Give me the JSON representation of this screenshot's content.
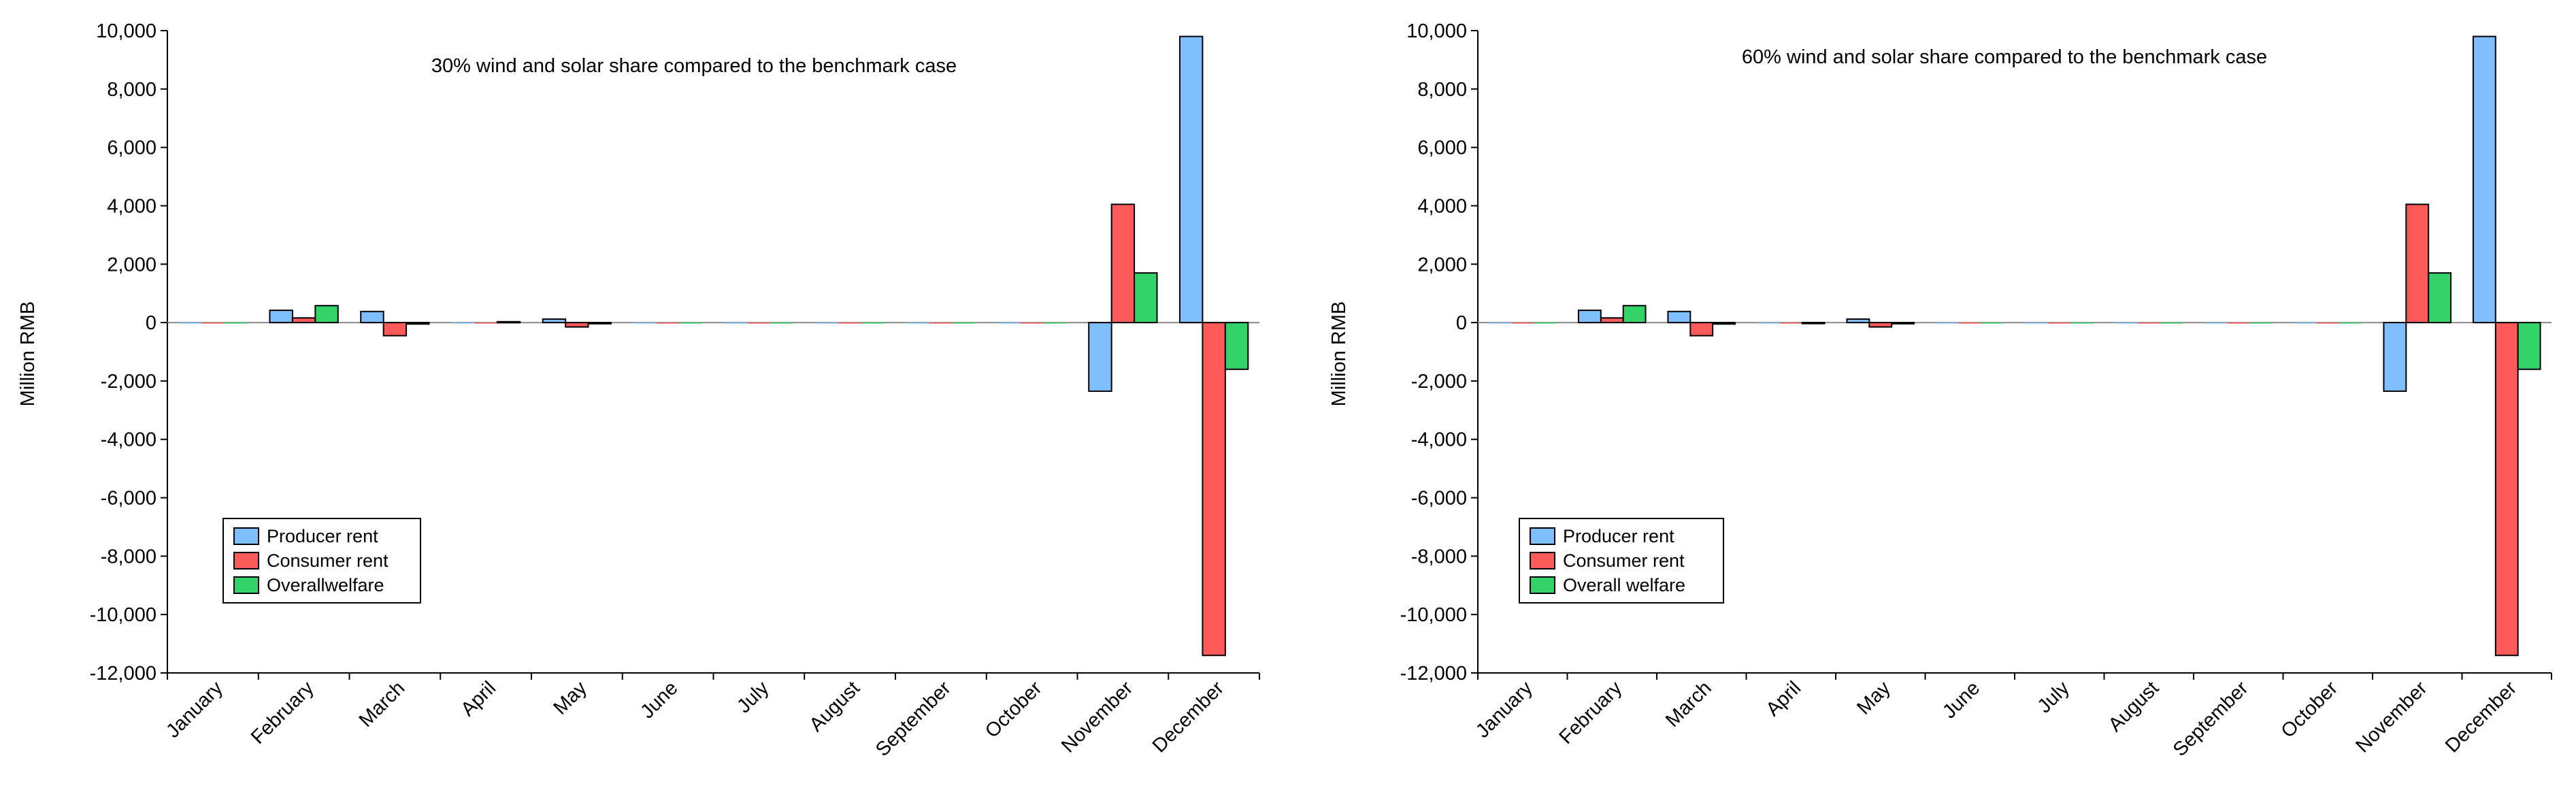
{
  "colors": {
    "producer": "#7fbfff",
    "consumer": "#ff5a5a",
    "welfare": "#33d36a",
    "axis": "#000000",
    "zero_line": "#8c8c8c"
  },
  "chart_data": [
    {
      "type": "bar",
      "title": "30% wind and solar share compared to the benchmark case",
      "ylabel": "Million RMB",
      "xlabel": "",
      "ylim": [
        -12000,
        10000
      ],
      "y_ticks": [
        "10,000",
        "8,000",
        "6,000",
        "4,000",
        "2,000",
        "0",
        "-2,000",
        "-4,000",
        "-6,000",
        "-8,000",
        "-10,000",
        "-12,000"
      ],
      "categories": [
        "January",
        "February",
        "March",
        "April",
        "May",
        "June",
        "July",
        "August",
        "September",
        "October",
        "November",
        "December"
      ],
      "legend_position": "lower-left",
      "series": [
        {
          "name": "Producer rent",
          "values": [
            0,
            420,
            380,
            0,
            120,
            0,
            0,
            0,
            0,
            0,
            -2350,
            9800
          ]
        },
        {
          "name": "Consumer rent",
          "values": [
            0,
            160,
            -450,
            0,
            -150,
            0,
            0,
            0,
            0,
            0,
            4050,
            -11400
          ]
        },
        {
          "name": "Overallwelfare",
          "values": [
            0,
            580,
            -50,
            30,
            -40,
            0,
            0,
            0,
            0,
            0,
            1700,
            -1600
          ]
        }
      ]
    },
    {
      "type": "bar",
      "title": "60% wind and solar share compared to the benchmark case",
      "ylabel": "Million RMB",
      "xlabel": "",
      "ylim": [
        -12000,
        10000
      ],
      "y_ticks": [
        "10,000",
        "8,000",
        "6,000",
        "4,000",
        "2,000",
        "0",
        "-2,000",
        "-4,000",
        "-6,000",
        "-8,000",
        "-10,000",
        "-12,000"
      ],
      "categories": [
        "January",
        "February",
        "March",
        "April",
        "May",
        "June",
        "July",
        "August",
        "September",
        "October",
        "November",
        "December"
      ],
      "legend_position": "lower-left",
      "series": [
        {
          "name": "Producer rent",
          "values": [
            0,
            420,
            380,
            0,
            120,
            0,
            0,
            0,
            0,
            0,
            -2350,
            9800
          ]
        },
        {
          "name": "Consumer rent",
          "values": [
            0,
            160,
            -450,
            0,
            -150,
            0,
            0,
            0,
            0,
            0,
            4050,
            -11400
          ]
        },
        {
          "name": "Overall welfare",
          "values": [
            0,
            580,
            -50,
            -30,
            -40,
            0,
            0,
            0,
            0,
            0,
            1700,
            -1600
          ]
        }
      ]
    }
  ]
}
